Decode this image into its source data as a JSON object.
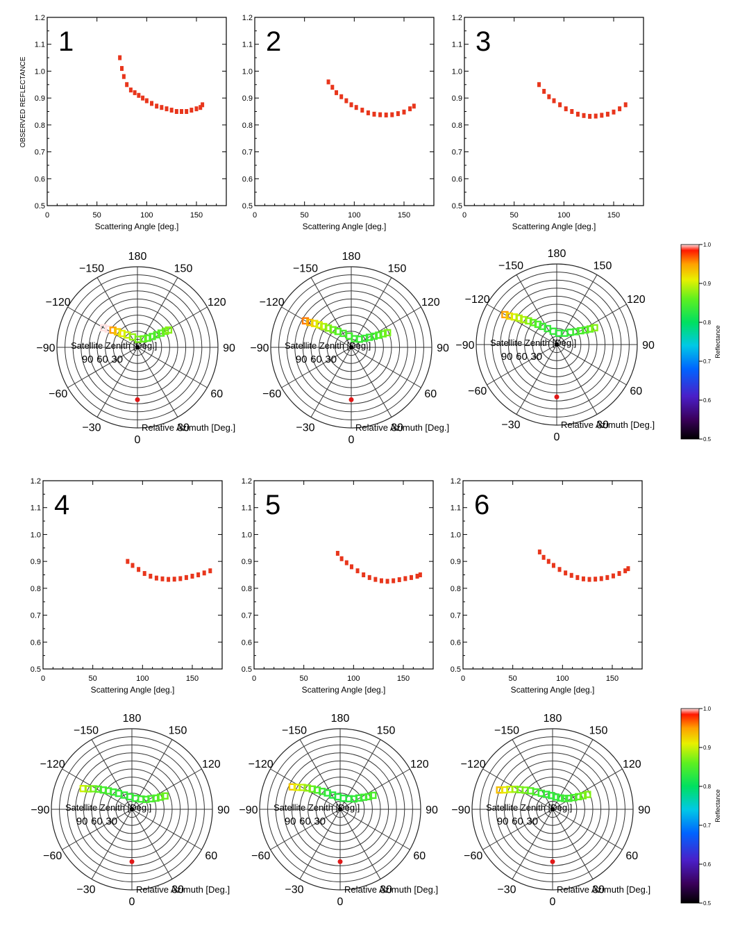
{
  "chart_data": {
    "scatter": {
      "type": "scatter",
      "xlabel": "Scattering Angle [deg.]",
      "ylabel": "OBSERVED REFLECTANCE",
      "xlim": [
        0,
        180
      ],
      "ylim": [
        0.5,
        1.2
      ],
      "x_ticks": [
        "0",
        "50",
        "100",
        "150"
      ],
      "y_ticks": [
        "0.5",
        "0.6",
        "0.7",
        "0.8",
        "0.9",
        "1.0",
        "1.1",
        "1.2"
      ],
      "marker_color": "#e8361c"
    },
    "polar": {
      "type": "polar-scatter",
      "radial_label": "Satellite Zenith [Deg.]",
      "azimuth_label": "Relative Azimuth [Deg.]",
      "angle_labels": [
        "180",
        "150",
        "120",
        "90",
        "60",
        "30",
        "0",
        "−30",
        "−60",
        "−90",
        "−120",
        "−150"
      ],
      "radial_tick_labels": [
        "30",
        "60",
        "90"
      ],
      "sun_marker_color": "#e01818"
    },
    "colorbar": {
      "label": "Reflectance",
      "range": [
        0.5,
        1.0
      ],
      "ticks": [
        "1.0",
        "0.9",
        "0.8",
        "0.7",
        "0.6",
        "0.5"
      ]
    },
    "panels": [
      {
        "label": "1",
        "points": [
          [
            73,
            1.05
          ],
          [
            75,
            1.01
          ],
          [
            77,
            0.98
          ],
          [
            80,
            0.95
          ],
          [
            84,
            0.93
          ],
          [
            88,
            0.92
          ],
          [
            92,
            0.91
          ],
          [
            96,
            0.9
          ],
          [
            100,
            0.89
          ],
          [
            105,
            0.88
          ],
          [
            110,
            0.87
          ],
          [
            115,
            0.865
          ],
          [
            120,
            0.86
          ],
          [
            125,
            0.855
          ],
          [
            130,
            0.85
          ],
          [
            135,
            0.85
          ],
          [
            140,
            0.85
          ],
          [
            145,
            0.855
          ],
          [
            150,
            0.86
          ],
          [
            154,
            0.865
          ],
          [
            156,
            0.875
          ]
        ],
        "polar_points": [
          [
            34,
            -120
          ],
          [
            30,
            -122
          ],
          [
            26,
            -125
          ],
          [
            22,
            -128
          ],
          [
            18,
            -132
          ],
          [
            14,
            -140
          ],
          [
            10,
            -155
          ],
          [
            7,
            -185
          ],
          [
            9,
            -215
          ],
          [
            12,
            -228
          ],
          [
            16,
            -234
          ],
          [
            20,
            -237
          ],
          [
            24,
            -239
          ],
          [
            28,
            -240
          ],
          [
            31,
            -241
          ]
        ]
      },
      {
        "label": "2",
        "points": [
          [
            74,
            0.96
          ],
          [
            78,
            0.94
          ],
          [
            82,
            0.92
          ],
          [
            87,
            0.905
          ],
          [
            92,
            0.89
          ],
          [
            97,
            0.875
          ],
          [
            102,
            0.865
          ],
          [
            108,
            0.855
          ],
          [
            114,
            0.845
          ],
          [
            120,
            0.84
          ],
          [
            126,
            0.838
          ],
          [
            132,
            0.837
          ],
          [
            138,
            0.838
          ],
          [
            144,
            0.842
          ],
          [
            150,
            0.848
          ],
          [
            156,
            0.86
          ],
          [
            160,
            0.87
          ]
        ],
        "polar_points": [
          [
            46,
            -120
          ],
          [
            42,
            -121
          ],
          [
            38,
            -123
          ],
          [
            34,
            -125
          ],
          [
            30,
            -127
          ],
          [
            26,
            -130
          ],
          [
            22,
            -134
          ],
          [
            18,
            -140
          ],
          [
            14,
            -150
          ],
          [
            10,
            -170
          ],
          [
            8,
            -200
          ],
          [
            10,
            -225
          ],
          [
            14,
            -236
          ],
          [
            18,
            -241
          ],
          [
            22,
            -244
          ],
          [
            26,
            -246
          ],
          [
            30,
            -247
          ],
          [
            34,
            -248
          ]
        ]
      },
      {
        "label": "3",
        "points": [
          [
            75,
            0.95
          ],
          [
            80,
            0.925
          ],
          [
            85,
            0.905
          ],
          [
            90,
            0.89
          ],
          [
            96,
            0.875
          ],
          [
            102,
            0.86
          ],
          [
            108,
            0.85
          ],
          [
            114,
            0.84
          ],
          [
            120,
            0.835
          ],
          [
            126,
            0.832
          ],
          [
            132,
            0.833
          ],
          [
            138,
            0.836
          ],
          [
            144,
            0.84
          ],
          [
            150,
            0.848
          ],
          [
            156,
            0.86
          ],
          [
            162,
            0.875
          ]
        ],
        "polar_points": [
          [
            52,
            -120
          ],
          [
            48,
            -121
          ],
          [
            44,
            -123
          ],
          [
            40,
            -125
          ],
          [
            36,
            -127
          ],
          [
            32,
            -130
          ],
          [
            28,
            -133
          ],
          [
            24,
            -137
          ],
          [
            20,
            -142
          ],
          [
            16,
            -150
          ],
          [
            12,
            -165
          ],
          [
            10,
            -190
          ],
          [
            12,
            -215
          ],
          [
            16,
            -228
          ],
          [
            20,
            -236
          ],
          [
            24,
            -240
          ],
          [
            28,
            -243
          ],
          [
            32,
            -245
          ],
          [
            36,
            -246
          ]
        ]
      },
      {
        "label": "4",
        "points": [
          [
            85,
            0.9
          ],
          [
            90,
            0.885
          ],
          [
            96,
            0.87
          ],
          [
            102,
            0.855
          ],
          [
            108,
            0.845
          ],
          [
            114,
            0.838
          ],
          [
            120,
            0.835
          ],
          [
            126,
            0.833
          ],
          [
            132,
            0.834
          ],
          [
            138,
            0.836
          ],
          [
            144,
            0.84
          ],
          [
            150,
            0.845
          ],
          [
            156,
            0.85
          ],
          [
            162,
            0.857
          ],
          [
            168,
            0.865
          ]
        ],
        "polar_points": [
          [
            46,
            -113
          ],
          [
            42,
            -115
          ],
          [
            38,
            -118
          ],
          [
            34,
            -121
          ],
          [
            30,
            -124
          ],
          [
            26,
            -128
          ],
          [
            22,
            -133
          ],
          [
            18,
            -140
          ],
          [
            14,
            -152
          ],
          [
            11,
            -172
          ],
          [
            10,
            -198
          ],
          [
            12,
            -222
          ],
          [
            15,
            -235
          ],
          [
            19,
            -241
          ],
          [
            23,
            -245
          ],
          [
            27,
            -247
          ],
          [
            31,
            -248
          ]
        ]
      },
      {
        "label": "5",
        "points": [
          [
            84,
            0.93
          ],
          [
            88,
            0.91
          ],
          [
            93,
            0.895
          ],
          [
            98,
            0.88
          ],
          [
            104,
            0.865
          ],
          [
            110,
            0.85
          ],
          [
            116,
            0.84
          ],
          [
            122,
            0.833
          ],
          [
            128,
            0.828
          ],
          [
            134,
            0.826
          ],
          [
            140,
            0.828
          ],
          [
            146,
            0.832
          ],
          [
            152,
            0.836
          ],
          [
            158,
            0.84
          ],
          [
            164,
            0.845
          ],
          [
            167,
            0.85
          ]
        ],
        "polar_points": [
          [
            46,
            -115
          ],
          [
            42,
            -117
          ],
          [
            38,
            -120
          ],
          [
            34,
            -123
          ],
          [
            30,
            -126
          ],
          [
            26,
            -130
          ],
          [
            22,
            -135
          ],
          [
            18,
            -142
          ],
          [
            14,
            -152
          ],
          [
            11,
            -170
          ],
          [
            10,
            -196
          ],
          [
            12,
            -220
          ],
          [
            15,
            -233
          ],
          [
            19,
            -239
          ],
          [
            23,
            -243
          ],
          [
            27,
            -246
          ],
          [
            31,
            -247
          ]
        ]
      },
      {
        "label": "6",
        "points": [
          [
            77,
            0.935
          ],
          [
            81,
            0.915
          ],
          [
            86,
            0.9
          ],
          [
            91,
            0.885
          ],
          [
            97,
            0.87
          ],
          [
            103,
            0.857
          ],
          [
            109,
            0.848
          ],
          [
            115,
            0.84
          ],
          [
            121,
            0.835
          ],
          [
            127,
            0.833
          ],
          [
            133,
            0.834
          ],
          [
            139,
            0.836
          ],
          [
            145,
            0.84
          ],
          [
            151,
            0.846
          ],
          [
            157,
            0.855
          ],
          [
            163,
            0.865
          ],
          [
            166,
            0.873
          ]
        ],
        "polar_points": [
          [
            49,
            -110
          ],
          [
            45,
            -112
          ],
          [
            41,
            -115
          ],
          [
            37,
            -118
          ],
          [
            33,
            -121
          ],
          [
            29,
            -125
          ],
          [
            25,
            -130
          ],
          [
            21,
            -136
          ],
          [
            17,
            -145
          ],
          [
            14,
            -158
          ],
          [
            12,
            -175
          ],
          [
            11,
            -195
          ],
          [
            12,
            -215
          ],
          [
            14,
            -228
          ],
          [
            17,
            -236
          ],
          [
            21,
            -241
          ],
          [
            25,
            -244
          ],
          [
            29,
            -246
          ],
          [
            33,
            -247
          ]
        ]
      }
    ]
  }
}
